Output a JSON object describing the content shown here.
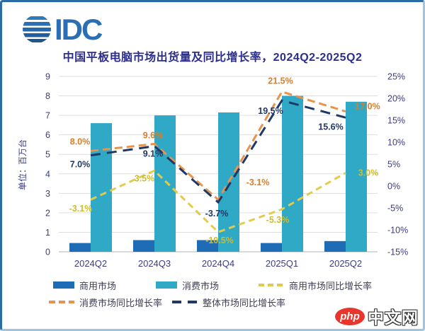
{
  "logo": {
    "text": "IDC",
    "color": "#2a6fb5"
  },
  "watermark": {
    "badge": "php",
    "text": "中文网",
    "badge_color": "#e8362d"
  },
  "chart_data": {
    "type": "bar+line",
    "title": "中国平板电脑市场出货量及同比增长率，2024Q2-2025Q2",
    "y_left_title": "单位：百万台",
    "categories": [
      "2024Q2",
      "2024Q3",
      "2024Q4",
      "2025Q1",
      "2025Q2"
    ],
    "bar_series": [
      {
        "name": "商用市场",
        "color": "#1e6cb5",
        "values": [
          0.45,
          0.6,
          0.6,
          0.45,
          0.55
        ]
      },
      {
        "name": "消费市场",
        "color": "#2fa9c6",
        "values": [
          6.6,
          7.0,
          7.15,
          8.0,
          7.7
        ]
      }
    ],
    "line_series": [
      {
        "name": "商用市场同比增长率",
        "color": "#e2cb4a",
        "label_color": "#cdbc2e",
        "values": [
          -3.1,
          3.5,
          -10.5,
          -5.3,
          3.0
        ],
        "labels": [
          "-3.1%",
          "3.5%",
          "-10.5%",
          "-5.3%",
          "3.0%"
        ]
      },
      {
        "name": "消费市场同比增长率",
        "color": "#e6944d",
        "label_color": "#d97e2a",
        "values": [
          8.0,
          9.6,
          -3.1,
          21.5,
          17.0
        ],
        "labels": [
          "8.0%",
          "9.6%",
          "-3.1%",
          "21.5%",
          "17.0%"
        ]
      },
      {
        "name": "整体市场同比增长率",
        "color": "#1f3864",
        "label_color": "#1f3864",
        "values": [
          7.0,
          9.1,
          -3.7,
          19.5,
          15.6
        ],
        "labels": [
          "7.0%",
          "9.1%",
          "-3.7%",
          "19.5%",
          "15.6%"
        ]
      }
    ],
    "left_axis": {
      "min": 0,
      "max": 9,
      "ticks": [
        "9",
        "8",
        "7",
        "6",
        "5",
        "4",
        "3",
        "2",
        "1",
        "0"
      ]
    },
    "right_axis": {
      "min": -15,
      "max": 25,
      "ticks": [
        "25%",
        "20%",
        "15%",
        "10%",
        "5%",
        "0%",
        "-5%",
        "-10%",
        "-15%"
      ]
    },
    "grid": "horizontal",
    "legend_position": "bottom",
    "tick_color": "#3c3c80"
  }
}
